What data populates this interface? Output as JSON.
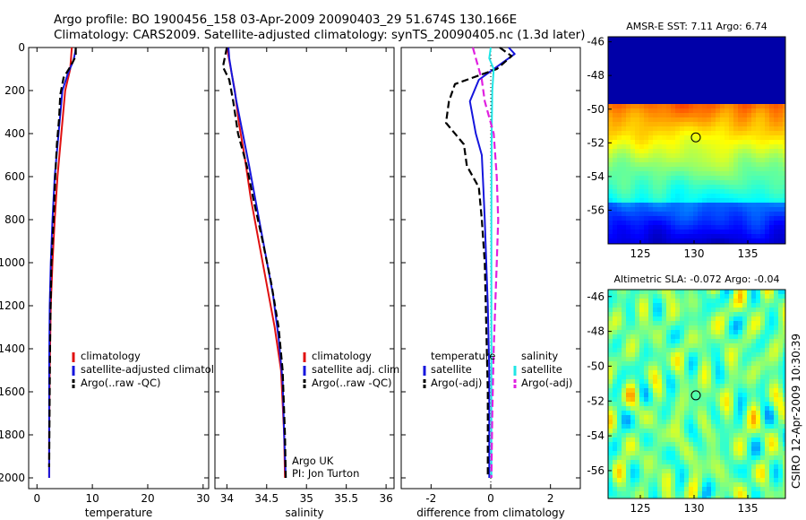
{
  "header": {
    "line1": "Argo profile: BO 1900456_158 03-Apr-2009 20090403_29 51.674S 130.166E",
    "line2": "Climatology: CARS2009. Satellite-adjusted climatology: synTS_20090405.nc (1.3d later)"
  },
  "credit": "CSIRO 12-Apr-2009 10:30:39",
  "colors": {
    "climatology": "#e01010",
    "satellite": "#1515dd",
    "argo": "#000000",
    "salinity_satellite": "#20e6e6",
    "salinity_argo": "#e020e0",
    "zero_line": "#000000"
  },
  "chart_data": [
    {
      "id": "temperature",
      "type": "line",
      "xlabel": "temperature",
      "ylabel": "",
      "xlim": [
        -1.5,
        31
      ],
      "ylim": [
        2050,
        0
      ],
      "xticks": [
        0,
        10,
        20,
        30
      ],
      "yticks": [
        0,
        200,
        400,
        600,
        800,
        1000,
        1200,
        1400,
        1600,
        1800,
        2000
      ],
      "legend": {
        "position": "bottom-right",
        "entries": [
          "climatology",
          "satellite-adjusted climatology",
          "Argo(..raw -QC)"
        ]
      },
      "series": [
        {
          "name": "climatology",
          "color": "#e01010",
          "dash": "solid",
          "x": [
            6.3,
            6.0,
            5.1,
            4.4,
            3.7,
            3.2,
            2.8,
            2.5,
            2.3,
            2.2,
            2.2
          ],
          "y": [
            0,
            100,
            200,
            400,
            600,
            800,
            1000,
            1200,
            1500,
            1800,
            2000
          ]
        },
        {
          "name": "satellite-adjusted climatology",
          "color": "#1515dd",
          "dash": "solid",
          "x": [
            7.0,
            6.9,
            6.6,
            5.6,
            4.6,
            3.9,
            3.2,
            2.8,
            2.5,
            2.3,
            2.2,
            2.2
          ],
          "y": [
            0,
            20,
            60,
            120,
            200,
            400,
            600,
            800,
            1000,
            1200,
            1500,
            2000
          ]
        },
        {
          "name": "Argo(..raw -QC)",
          "color": "#000000",
          "dash": "dashed",
          "x": [
            7.0,
            7.0,
            6.0,
            4.8,
            4.2,
            4.0,
            3.6,
            3.3,
            3.0,
            2.6,
            2.4,
            2.3,
            2.2
          ],
          "y": [
            0,
            40,
            90,
            140,
            220,
            330,
            450,
            600,
            800,
            1000,
            1300,
            1600,
            1950
          ]
        }
      ]
    },
    {
      "id": "salinity",
      "type": "line",
      "xlabel": "salinity",
      "ylabel": "",
      "xlim": [
        33.85,
        36.1
      ],
      "ylim": [
        2050,
        0
      ],
      "xticks": [
        34,
        34.5,
        35,
        35.5,
        36
      ],
      "xticklabels": [
        "34",
        "34.5",
        "35",
        "35.5",
        "36"
      ],
      "legend": {
        "position": "bottom-right",
        "entries": [
          "climatology",
          "satellite adj. clim.",
          "Argo(..raw -QC)"
        ]
      },
      "annotation": [
        "Argo UK",
        "PI: Jon Turton"
      ],
      "series": [
        {
          "name": "climatology",
          "color": "#e01010",
          "dash": "solid",
          "x": [
            34.0,
            34.05,
            34.1,
            34.15,
            34.22,
            34.3,
            34.4,
            34.5,
            34.6,
            34.68,
            34.72,
            34.73
          ],
          "y": [
            0,
            100,
            200,
            350,
            500,
            700,
            900,
            1100,
            1300,
            1500,
            1800,
            2000
          ]
        },
        {
          "name": "satellite adj. clim.",
          "color": "#1515dd",
          "dash": "solid",
          "x": [
            34.02,
            34.03,
            34.06,
            34.12,
            34.2,
            34.28,
            34.38,
            34.48,
            34.58,
            34.65,
            34.7,
            34.72,
            34.74
          ],
          "y": [
            0,
            50,
            120,
            250,
            400,
            550,
            750,
            950,
            1150,
            1350,
            1550,
            1800,
            2000
          ]
        },
        {
          "name": "Argo(..raw -QC)",
          "color": "#000000",
          "dash": "dashed",
          "x": [
            34.0,
            33.95,
            34.03,
            34.08,
            34.14,
            34.25,
            34.33,
            34.45,
            34.56,
            34.65,
            34.7,
            34.73,
            34.74
          ],
          "y": [
            0,
            90,
            150,
            250,
            400,
            550,
            700,
            900,
            1100,
            1300,
            1500,
            1800,
            2000
          ]
        }
      ]
    },
    {
      "id": "difference",
      "type": "line",
      "xlabel": "difference from climatology",
      "ylabel": "",
      "xlim": [
        -3,
        3
      ],
      "ylim": [
        2050,
        0
      ],
      "xticks": [
        -2,
        0,
        2
      ],
      "legend": {
        "position": "bottom",
        "groups": [
          {
            "title": "temperature",
            "entries": [
              "satellite",
              "Argo(-adj)"
            ]
          },
          {
            "title": "salinity",
            "entries": [
              "satellite",
              "Argo(-adj)"
            ]
          }
        ]
      },
      "series": [
        {
          "name": "temperature satellite",
          "color": "#1515dd",
          "dash": "solid",
          "x": [
            0.6,
            0.8,
            0.3,
            -0.4,
            -0.7,
            -0.5,
            -0.3,
            -0.25,
            -0.2,
            -0.15,
            -0.1,
            -0.05,
            -0.05,
            -0.05
          ],
          "y": [
            0,
            30,
            80,
            150,
            250,
            400,
            500,
            650,
            800,
            1000,
            1200,
            1500,
            1800,
            2000
          ]
        },
        {
          "name": "temperature Argo(-adj)",
          "color": "#000000",
          "dash": "dashed",
          "x": [
            0.3,
            0.7,
            0.2,
            -1.2,
            -1.4,
            -1.5,
            -0.9,
            -0.8,
            -0.4,
            -0.3,
            -0.2,
            -0.15,
            -0.1,
            -0.1
          ],
          "y": [
            0,
            40,
            100,
            170,
            250,
            350,
            450,
            550,
            650,
            800,
            1000,
            1300,
            1600,
            2000
          ]
        },
        {
          "name": "salinity satellite",
          "color": "#20e6e6",
          "dash": "solid",
          "x": [
            0.0,
            -0.05,
            0.1,
            0.05,
            0.03,
            0.02,
            0.02,
            0.02,
            0.02
          ],
          "y": [
            0,
            50,
            100,
            200,
            400,
            800,
            1200,
            1600,
            2000
          ]
        },
        {
          "name": "salinity Argo(-adj)",
          "color": "#e020e0",
          "dash": "dashed",
          "x": [
            -0.6,
            -0.5,
            -0.4,
            -0.3,
            -0.2,
            0.1,
            0.2,
            0.25,
            0.2,
            0.15,
            0.1,
            0.05,
            0.02
          ],
          "y": [
            0,
            50,
            100,
            150,
            250,
            400,
            600,
            800,
            1000,
            1200,
            1400,
            1700,
            2000
          ]
        }
      ]
    },
    {
      "id": "sst_map",
      "type": "heatmap",
      "title": "AMSR-E SST: 7.11 Argo: 6.74",
      "xlim": [
        122,
        138.5
      ],
      "ylim": [
        -58,
        -45.7
      ],
      "xticks": [
        125,
        130,
        135
      ],
      "yticks": [
        -46,
        -48,
        -50,
        -52,
        -54,
        -56
      ],
      "marker": {
        "lon": 130.166,
        "lat": -51.674
      }
    },
    {
      "id": "sla_map",
      "type": "heatmap",
      "title": "Altimetric SLA: -0.072 Argo: -0.04",
      "xlim": [
        122,
        138.5
      ],
      "ylim": [
        -57.6,
        -45.6
      ],
      "xticks": [
        125,
        130,
        135
      ],
      "yticks": [
        -46,
        -48,
        -50,
        -52,
        -54,
        -56
      ],
      "marker": {
        "lon": 130.166,
        "lat": -51.674
      }
    }
  ]
}
